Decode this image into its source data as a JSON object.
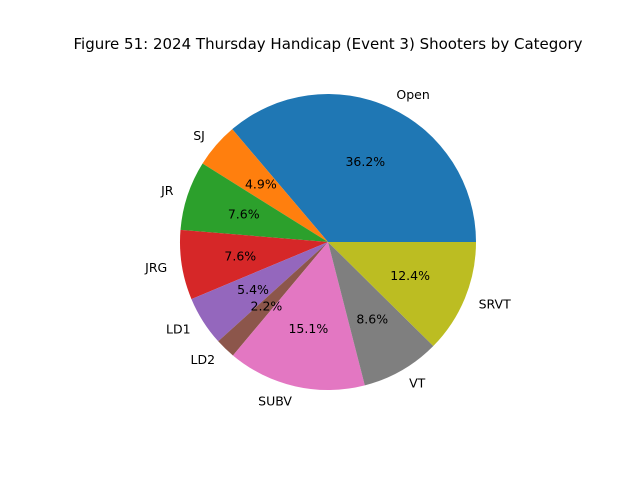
{
  "chart_data": {
    "type": "pie",
    "title": "Figure 51: 2024 Thursday Handicap (Event 3) Shooters by Category",
    "start_angle": 0,
    "direction": "counterclockwise",
    "slices": [
      {
        "label": "Open",
        "value": 36.2,
        "pct_label": "36.2%",
        "color": "#1f77b4"
      },
      {
        "label": "SJ",
        "value": 4.9,
        "pct_label": "4.9%",
        "color": "#ff7f0e"
      },
      {
        "label": "JR",
        "value": 7.6,
        "pct_label": "7.6%",
        "color": "#2ca02c"
      },
      {
        "label": "JRG",
        "value": 7.6,
        "pct_label": "7.6%",
        "color": "#d62728"
      },
      {
        "label": "LD1",
        "value": 5.4,
        "pct_label": "5.4%",
        "color": "#9467bd"
      },
      {
        "label": "LD2",
        "value": 2.2,
        "pct_label": "2.2%",
        "color": "#8c564b"
      },
      {
        "label": "SUBV",
        "value": 15.1,
        "pct_label": "15.1%",
        "color": "#e377c2"
      },
      {
        "label": "VT",
        "value": 8.6,
        "pct_label": "8.6%",
        "color": "#7f7f7f"
      },
      {
        "label": "SRVT",
        "value": 12.4,
        "pct_label": "12.4%",
        "color": "#bcbd22"
      }
    ]
  }
}
